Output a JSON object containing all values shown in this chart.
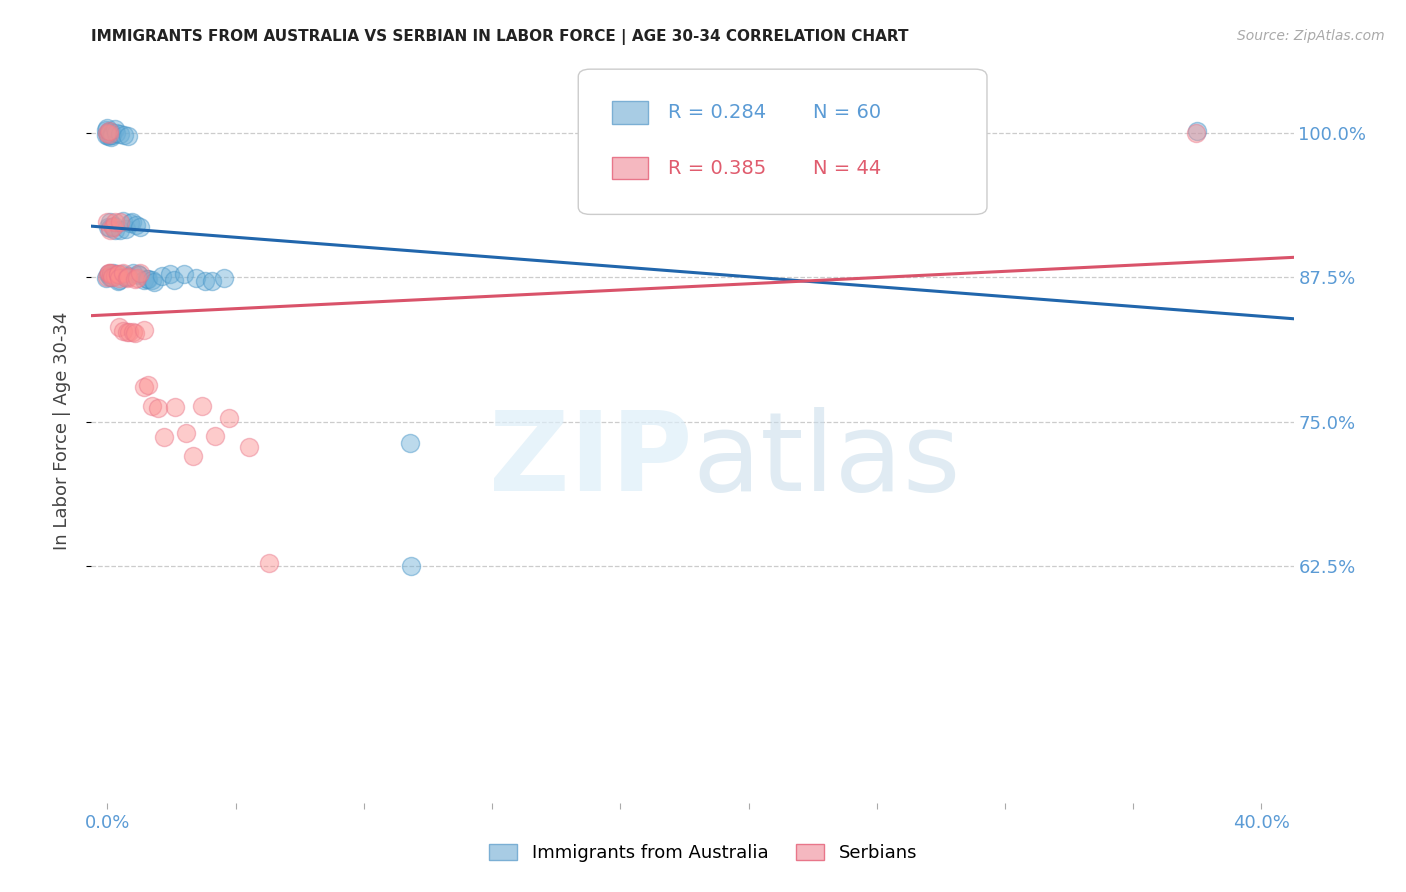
{
  "title": "IMMIGRANTS FROM AUSTRALIA VS SERBIAN IN LABOR FORCE | AGE 30-34 CORRELATION CHART",
  "source": "Source: ZipAtlas.com",
  "ylabel": "In Labor Force | Age 30-34",
  "australia_color": "#6baed6",
  "serbian_color": "#fc8d8d",
  "australia_edge_color": "#4292c6",
  "serbian_edge_color": "#e8768a",
  "australia_line_color": "#2166ac",
  "serbian_line_color": "#d9536a",
  "ytick_values": [
    1.0,
    0.875,
    0.75,
    0.625
  ],
  "ytick_labels": [
    "100.0%",
    "87.5%",
    "75.0%",
    "62.5%"
  ],
  "xlim": [
    -0.005,
    0.37
  ],
  "ylim": [
    0.42,
    1.065
  ],
  "legend_r_aus": "R = 0.284",
  "legend_n_aus": "N = 60",
  "legend_r_ser": "R = 0.385",
  "legend_n_ser": "N = 44",
  "legend_label_aus": "Immigrants from Australia",
  "legend_label_ser": "Serbians",
  "aus_x": [
    0.0,
    0.0,
    0.0,
    0.0,
    0.0,
    0.0,
    0.0,
    0.0,
    0.0,
    0.0,
    0.001,
    0.001,
    0.001,
    0.001,
    0.001,
    0.001,
    0.001,
    0.001,
    0.002,
    0.002,
    0.002,
    0.002,
    0.002,
    0.003,
    0.003,
    0.003,
    0.003,
    0.004,
    0.004,
    0.004,
    0.005,
    0.005,
    0.005,
    0.006,
    0.006,
    0.006,
    0.007,
    0.007,
    0.008,
    0.008,
    0.009,
    0.009,
    0.01,
    0.01,
    0.011,
    0.012,
    0.013,
    0.014,
    0.015,
    0.017,
    0.019,
    0.021,
    0.024,
    0.027,
    0.03,
    0.033,
    0.036,
    0.095,
    0.095,
    0.34
  ],
  "aus_y": [
    1.0,
    1.0,
    1.0,
    1.0,
    1.0,
    1.0,
    1.0,
    0.92,
    0.875,
    0.875,
    1.0,
    1.0,
    1.0,
    1.0,
    0.92,
    0.92,
    0.875,
    0.875,
    1.0,
    1.0,
    0.92,
    0.875,
    0.875,
    1.0,
    0.92,
    0.875,
    0.875,
    1.0,
    0.92,
    0.875,
    1.0,
    0.92,
    0.875,
    1.0,
    0.92,
    0.875,
    0.92,
    0.875,
    0.92,
    0.875,
    0.92,
    0.875,
    0.92,
    0.875,
    0.875,
    0.875,
    0.875,
    0.875,
    0.875,
    0.875,
    0.875,
    0.875,
    0.875,
    0.875,
    0.875,
    0.875,
    0.875,
    0.73,
    0.625,
    1.0
  ],
  "ser_x": [
    0.0,
    0.0,
    0.0,
    0.0,
    0.0,
    0.001,
    0.001,
    0.001,
    0.001,
    0.002,
    0.002,
    0.002,
    0.003,
    0.003,
    0.003,
    0.004,
    0.004,
    0.004,
    0.005,
    0.005,
    0.006,
    0.006,
    0.007,
    0.007,
    0.008,
    0.008,
    0.009,
    0.009,
    0.01,
    0.011,
    0.012,
    0.013,
    0.014,
    0.016,
    0.018,
    0.021,
    0.024,
    0.027,
    0.03,
    0.034,
    0.038,
    0.044,
    0.05,
    0.34
  ],
  "ser_y": [
    1.0,
    1.0,
    0.92,
    0.875,
    0.875,
    1.0,
    0.92,
    0.875,
    0.875,
    0.92,
    0.875,
    0.875,
    0.92,
    0.875,
    0.875,
    0.92,
    0.875,
    0.83,
    0.875,
    0.83,
    0.875,
    0.83,
    0.875,
    0.83,
    0.875,
    0.83,
    0.875,
    0.83,
    0.875,
    0.83,
    0.78,
    0.78,
    0.76,
    0.76,
    0.74,
    0.76,
    0.74,
    0.72,
    0.76,
    0.74,
    0.75,
    0.73,
    0.625,
    1.0
  ]
}
